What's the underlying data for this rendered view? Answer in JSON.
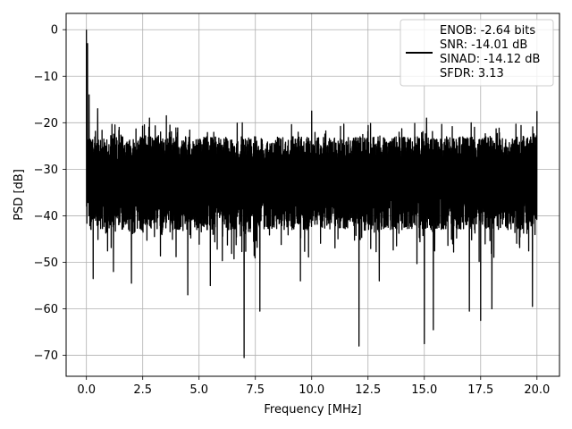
{
  "chart_data": {
    "type": "line",
    "xlabel": "Frequency [MHz]",
    "ylabel": "PSD [dB]",
    "xlim": [
      -0.9,
      21.0
    ],
    "ylim": [
      -74.5,
      3.5
    ],
    "xticks": [
      0.0,
      2.5,
      5.0,
      7.5,
      10.0,
      12.5,
      15.0,
      17.5,
      20.0
    ],
    "xtick_labels": [
      "0.0",
      "2.5",
      "5.0",
      "7.5",
      "10.0",
      "12.5",
      "15.0",
      "17.5",
      "20.0"
    ],
    "yticks": [
      0,
      -10,
      -20,
      -30,
      -40,
      -50,
      -60,
      -70
    ],
    "ytick_labels": [
      "0",
      "−10",
      "−20",
      "−30",
      "−40",
      "−50",
      "−60",
      "−70"
    ],
    "grid": true,
    "legend_position": "top-right",
    "line_color": "#000000",
    "legend": {
      "lines": [
        "ENOB: -2.64 bits",
        "SNR: -14.01 dB",
        "SINAD: -14.12 dB",
        "SFDR: 3.13"
      ]
    },
    "series": [
      {
        "x_range": [
          0,
          20
        ],
        "noise_floor_upper_db": -23,
        "noise_floor_lower_db": -43,
        "peaks": [
          {
            "x": 0.0,
            "y": 0.0
          },
          {
            "x": 0.05,
            "y": -3.0
          },
          {
            "x": 0.12,
            "y": -14.0
          },
          {
            "x": 0.5,
            "y": -17.0
          },
          {
            "x": 2.8,
            "y": -19.0
          },
          {
            "x": 3.55,
            "y": -18.5
          },
          {
            "x": 10.0,
            "y": -17.5
          },
          {
            "x": 15.1,
            "y": -19.0
          },
          {
            "x": 20.0,
            "y": -17.5
          }
        ],
        "dips": [
          {
            "x": 0.3,
            "y": -53.5
          },
          {
            "x": 1.2,
            "y": -52.0
          },
          {
            "x": 2.0,
            "y": -54.5
          },
          {
            "x": 4.5,
            "y": -57.0
          },
          {
            "x": 5.5,
            "y": -55.0
          },
          {
            "x": 7.0,
            "y": -70.5
          },
          {
            "x": 7.7,
            "y": -60.5
          },
          {
            "x": 9.5,
            "y": -54.0
          },
          {
            "x": 12.1,
            "y": -68.0
          },
          {
            "x": 13.0,
            "y": -54.0
          },
          {
            "x": 15.0,
            "y": -67.5
          },
          {
            "x": 15.4,
            "y": -64.5
          },
          {
            "x": 17.0,
            "y": -60.5
          },
          {
            "x": 17.5,
            "y": -62.5
          },
          {
            "x": 18.0,
            "y": -60.0
          },
          {
            "x": 19.8,
            "y": -59.5
          }
        ]
      }
    ]
  }
}
